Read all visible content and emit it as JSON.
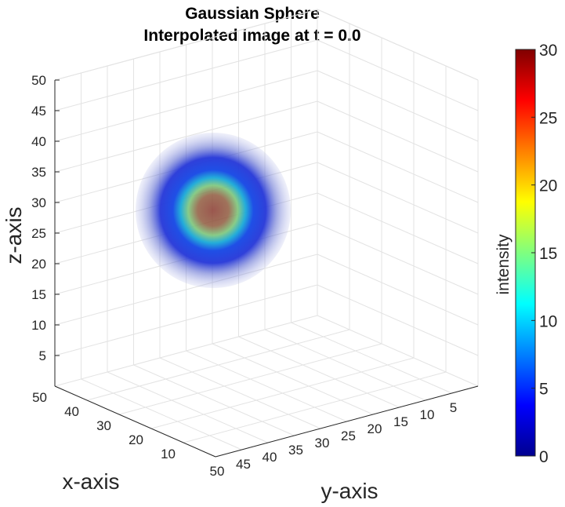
{
  "chart_data": {
    "type": "volume",
    "title": "Gaussian Sphere",
    "subtitle": "Interpolated image at t = 0.0",
    "xlabel": "x-axis",
    "ylabel": "y-axis",
    "zlabel": "z-axis",
    "xlim": [
      0,
      50
    ],
    "ylim": [
      0,
      50
    ],
    "zlim": [
      0,
      50
    ],
    "xticks": [
      10,
      20,
      30,
      40,
      50
    ],
    "yticks": [
      5,
      10,
      15,
      20,
      25,
      30,
      35,
      40,
      45,
      50
    ],
    "zticks": [
      5,
      10,
      15,
      20,
      25,
      30,
      35,
      40,
      45,
      50
    ],
    "grid": true,
    "sphere": {
      "center": [
        25,
        25,
        30
      ],
      "radius": 12,
      "peak_intensity": 30
    },
    "colorbar": {
      "label": "intensity",
      "colormap": "jet",
      "lim": [
        0,
        30
      ],
      "ticks": [
        0,
        5,
        10,
        15,
        20,
        25,
        30
      ]
    }
  }
}
